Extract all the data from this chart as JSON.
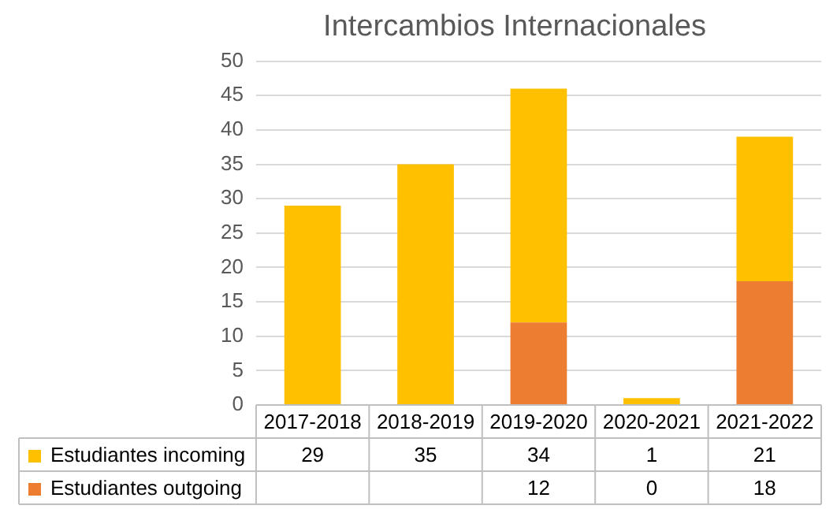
{
  "chart_data": {
    "type": "bar",
    "title": "Intercambios Internacionales",
    "categories": [
      "2017-2018",
      "2018-2019",
      "2019-2020",
      "2020-2021",
      "2021-2022"
    ],
    "stacked": true,
    "series": [
      {
        "name": "Estudiantes outgoing",
        "color": "#ed7d31",
        "values": [
          null,
          null,
          12,
          0,
          18
        ]
      },
      {
        "name": "Estudiantes incoming",
        "color": "#ffc000",
        "values": [
          29,
          35,
          34,
          1,
          21
        ]
      }
    ],
    "ylim": [
      0,
      50
    ],
    "yticks": [
      0,
      5,
      10,
      15,
      20,
      25,
      30,
      35,
      40,
      45,
      50
    ],
    "grid": "y",
    "legend": "bottom",
    "data_labels": true
  }
}
